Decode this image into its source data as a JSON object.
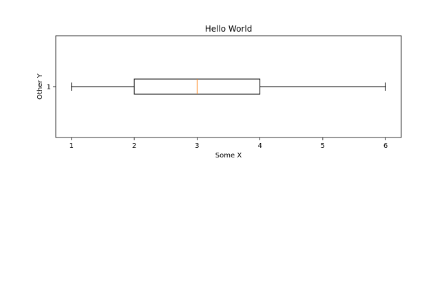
{
  "chart_data": {
    "type": "box",
    "orientation": "horizontal",
    "title": "Hello World",
    "xlabel": "Some X",
    "ylabel": "Other Y",
    "xlim": [
      0.75,
      6.25
    ],
    "xticks": [
      1,
      2,
      3,
      4,
      5,
      6
    ],
    "yticks": [
      1
    ],
    "grid": false,
    "boxes": [
      {
        "position": 1,
        "whisker_low": 1,
        "q1": 2,
        "median": 3,
        "q3": 4,
        "whisker_high": 6
      }
    ],
    "colors": {
      "box": "#000000",
      "median": "#ff7f0e",
      "axes": "#000000",
      "background": "#ffffff"
    }
  }
}
